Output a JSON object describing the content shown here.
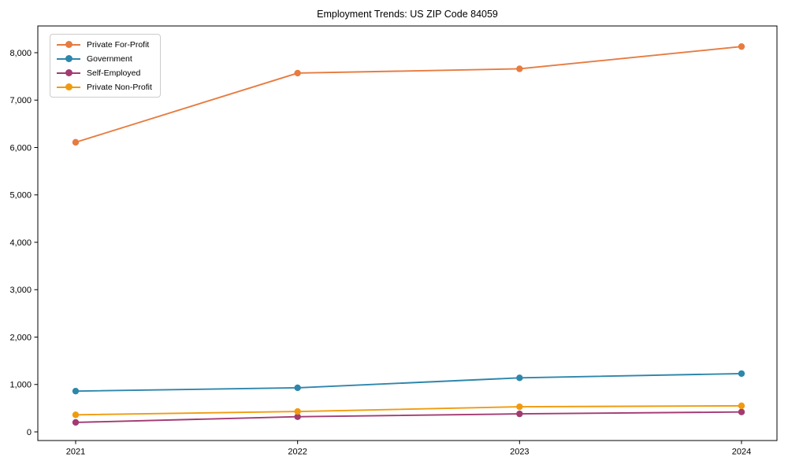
{
  "chart_data": {
    "type": "line",
    "title": "Employment Trends: US ZIP Code 84059",
    "categories": [
      "2021",
      "2022",
      "2023",
      "2024"
    ],
    "x": [
      2021,
      2022,
      2023,
      2024
    ],
    "series": [
      {
        "name": "Private For-Profit",
        "color": "#E77B40",
        "values": [
          6110,
          7570,
          7660,
          8130
        ]
      },
      {
        "name": "Government",
        "color": "#2E86AB",
        "values": [
          860,
          930,
          1140,
          1230
        ]
      },
      {
        "name": "Self-Employed",
        "color": "#A23B72",
        "values": [
          200,
          320,
          380,
          420
        ]
      },
      {
        "name": "Private Non-Profit",
        "color": "#F09B0F",
        "values": [
          360,
          430,
          530,
          550
        ]
      }
    ],
    "xlabel": "",
    "ylabel": "",
    "ylim": [
      0,
      8000
    ],
    "yticks": [
      0,
      1000,
      2000,
      3000,
      4000,
      5000,
      6000,
      7000,
      8000
    ],
    "ytick_labels": [
      "0",
      "1,000",
      "2,000",
      "3,000",
      "4,000",
      "5,000",
      "6,000",
      "7,000",
      "8,000"
    ],
    "grid": false,
    "marker": "circle",
    "legend_position": "upper-left",
    "frame_color": "#000000",
    "background_color": "#ffffff"
  }
}
